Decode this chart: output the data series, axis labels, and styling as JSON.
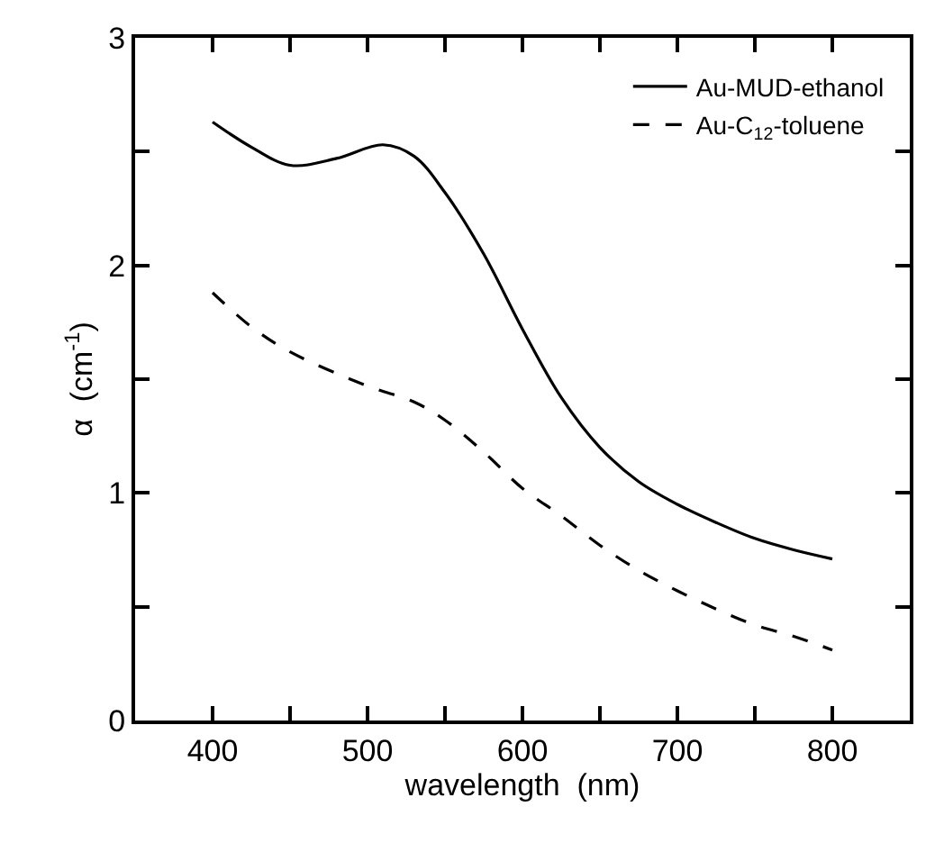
{
  "chart_data": {
    "type": "line",
    "xlabel": "wavelength  (nm)",
    "ylabel": "α  (cm$^{-1}$)",
    "xlim": [
      350,
      850
    ],
    "ylim": [
      0,
      3
    ],
    "xticks": [
      400,
      {
        "value": 450,
        "label": null
      },
      500,
      {
        "value": 550,
        "label": null
      },
      600,
      {
        "value": 650,
        "label": null
      },
      700,
      {
        "value": 750,
        "label": null
      },
      800
    ],
    "yticks": [
      0,
      {
        "value": 0.5,
        "label": null
      },
      1,
      {
        "value": 1.5,
        "label": null
      },
      2,
      {
        "value": 2.5,
        "label": null
      },
      3
    ],
    "legend": "top right",
    "marker": "none",
    "series": [
      {
        "name": "Au-MUD-ethanol",
        "color": "#000000",
        "line_style": "solid",
        "x": [
          400,
          425,
          450,
          480,
          510,
          530,
          550,
          575,
          600,
          625,
          650,
          675,
          700,
          725,
          750,
          775,
          800
        ],
        "values": [
          2.63,
          2.52,
          2.44,
          2.47,
          2.53,
          2.48,
          2.32,
          2.05,
          1.72,
          1.42,
          1.2,
          1.05,
          0.95,
          0.87,
          0.8,
          0.75,
          0.71
        ]
      },
      {
        "name": "Au-C$_{12}$-toluene",
        "color": "#000000",
        "line_style": "dashed",
        "x": [
          400,
          425,
          450,
          500,
          530,
          550,
          575,
          600,
          625,
          650,
          675,
          700,
          725,
          750,
          775,
          800
        ],
        "values": [
          1.88,
          1.73,
          1.62,
          1.47,
          1.4,
          1.32,
          1.18,
          1.02,
          0.9,
          0.77,
          0.66,
          0.57,
          0.49,
          0.42,
          0.37,
          0.31
        ]
      }
    ]
  }
}
